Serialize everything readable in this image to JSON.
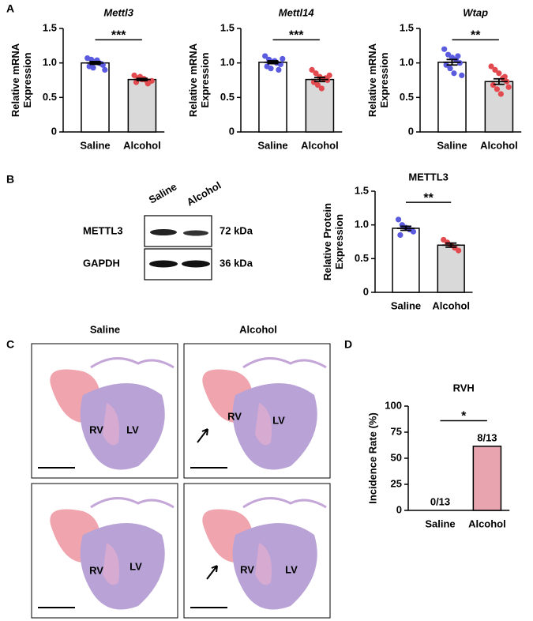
{
  "panels": [
    "A",
    "B",
    "C",
    "D"
  ],
  "blot": {
    "lanes": [
      "Saline",
      "Alcohol"
    ],
    "rows": [
      {
        "name": "METTL3",
        "size": "72 kDa"
      },
      {
        "name": "GAPDH",
        "size": "36 kDa"
      }
    ]
  },
  "histology": {
    "columns": [
      "Saline",
      "Alcohol"
    ],
    "labels": [
      "RV",
      "LV"
    ]
  },
  "chart_data": [
    {
      "type": "bar",
      "title": "Mettl3",
      "title_italic": true,
      "ylabel": [
        "Relative mRNA",
        "Expression"
      ],
      "categories": [
        "Saline",
        "Alcohol"
      ],
      "values": [
        1.0,
        0.76
      ],
      "errors": [
        0.02,
        0.015
      ],
      "colors": [
        "#ffffff",
        "#d9d9d9"
      ],
      "point_colors": [
        "#5b5be0",
        "#e34a4f"
      ],
      "points": [
        [
          1.07,
          1.05,
          1.02,
          1.0,
          0.97,
          0.95,
          0.93,
          1.04,
          0.99,
          0.9
        ],
        [
          0.82,
          0.78,
          0.76,
          0.75,
          0.73,
          0.72,
          0.8,
          0.77,
          0.7,
          0.74
        ]
      ],
      "significance": "***",
      "ylim": [
        0,
        1.5
      ],
      "yticks": [
        0,
        0.5,
        {
          "value": 1.0,
          "label": "1.0"
        },
        1.5
      ]
    },
    {
      "type": "bar",
      "title": "Mettl14",
      "title_italic": true,
      "ylabel": [
        "Relative mRNA",
        "Expression"
      ],
      "categories": [
        "Saline",
        "Alcohol"
      ],
      "values": [
        1.01,
        0.76
      ],
      "errors": [
        0.02,
        0.03
      ],
      "colors": [
        "#ffffff",
        "#d9d9d9"
      ],
      "point_colors": [
        "#5b5be0",
        "#e34a4f"
      ],
      "points": [
        [
          1.1,
          1.05,
          1.02,
          1.0,
          0.98,
          0.95,
          0.92,
          1.03,
          0.9,
          1.06
        ],
        [
          0.9,
          0.85,
          0.8,
          0.77,
          0.75,
          0.72,
          0.68,
          0.63,
          0.78,
          0.82
        ]
      ],
      "significance": "***",
      "ylim": [
        0,
        1.5
      ],
      "yticks": [
        0,
        0.5,
        {
          "value": 1.0,
          "label": "1.0"
        },
        1.5
      ]
    },
    {
      "type": "bar",
      "title": "Wtap",
      "title_italic": true,
      "ylabel": [
        "Relative mRNA",
        "Expression"
      ],
      "categories": [
        "Saline",
        "Alcohol"
      ],
      "values": [
        1.01,
        0.73
      ],
      "errors": [
        0.04,
        0.04
      ],
      "colors": [
        "#ffffff",
        "#d9d9d9"
      ],
      "point_colors": [
        "#5b5be0",
        "#e34a4f"
      ],
      "points": [
        [
          1.2,
          1.12,
          1.08,
          1.05,
          1.0,
          0.97,
          0.92,
          0.85,
          1.1,
          0.82
        ],
        [
          0.95,
          0.9,
          0.85,
          0.78,
          0.73,
          0.68,
          0.62,
          0.55,
          0.8,
          0.65
        ]
      ],
      "significance": "**",
      "ylim": [
        0,
        1.5
      ],
      "yticks": [
        0,
        0.5,
        {
          "value": 1.0,
          "label": "1.0"
        },
        1.5
      ]
    },
    {
      "type": "bar",
      "title": "METTL3",
      "title_italic": false,
      "ylabel": [
        "Relative Protein",
        "Expression"
      ],
      "categories": [
        "Saline",
        "Alcohol"
      ],
      "values": [
        0.95,
        0.7
      ],
      "errors": [
        0.03,
        0.03
      ],
      "colors": [
        "#ffffff",
        "#d9d9d9"
      ],
      "point_colors": [
        "#5b5be0",
        "#e34a4f"
      ],
      "points": [
        [
          1.08,
          1.0,
          0.96,
          0.93,
          0.9,
          0.85
        ],
        [
          0.78,
          0.74,
          0.7,
          0.66,
          0.62
        ]
      ],
      "significance": "**",
      "ylim": [
        0,
        1.5
      ],
      "yticks": [
        0,
        0.5,
        {
          "value": 1.0,
          "label": "1.0"
        },
        1.5
      ]
    },
    {
      "type": "bar",
      "title": "RVH",
      "title_italic": false,
      "ylabel": [
        "Incidence Rate (%)"
      ],
      "categories": [
        "Saline",
        "Alcohol"
      ],
      "values": [
        0,
        61.5
      ],
      "value_labels": [
        "0/13",
        "8/13"
      ],
      "colors": [
        "#ffffff",
        "#e8a5b0"
      ],
      "significance": "*",
      "ylim": [
        0,
        100
      ],
      "yticks": [
        0,
        25,
        50,
        75,
        100
      ]
    }
  ]
}
